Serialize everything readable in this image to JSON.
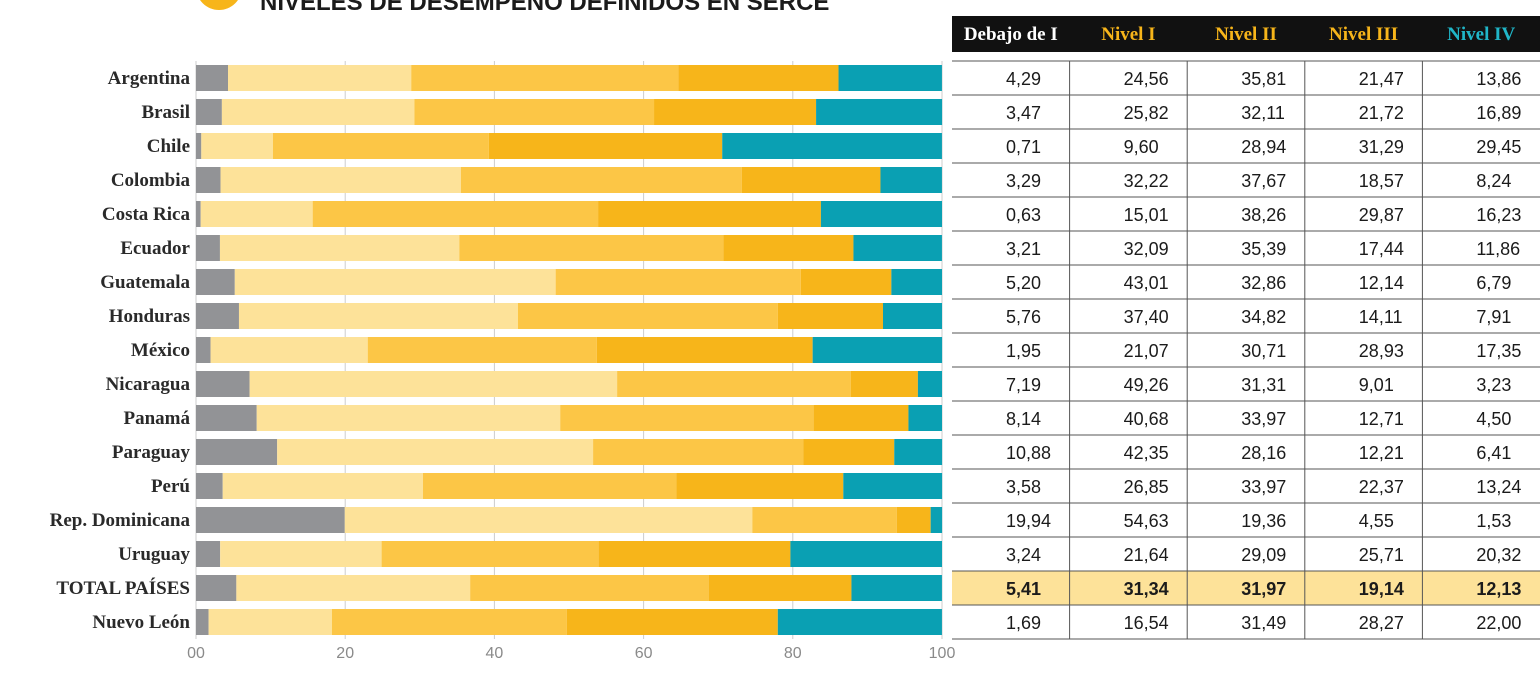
{
  "title": "NIVELES DE DESEMPEÑO DEFINIDOS EN SERCE",
  "colors": {
    "debajo": "#929396",
    "nivel1": "#fde299",
    "nivel2": "#fcc646",
    "nivel3": "#f7b51a",
    "nivel4": "#0aa0b3",
    "header_bg": "#111111",
    "header_text_white": "#ffffff",
    "header_text_gold": "#f7b51a",
    "header_text_teal": "#20b6c8",
    "total_row_bg": "#fde299",
    "grid": "#cccccc"
  },
  "chart_data": {
    "type": "bar",
    "orientation": "horizontal",
    "stacked": true,
    "title": "NIVELES DE DESEMPEÑO DEFINIDOS EN SERCE",
    "xlim": [
      0,
      100
    ],
    "xticks": [
      0,
      20,
      40,
      60,
      80,
      100
    ],
    "xtick_labels": [
      "00",
      "20",
      "40",
      "60",
      "80",
      "100"
    ],
    "categories": [
      "Argentina",
      "Brasil",
      "Chile",
      "Colombia",
      "Costa Rica",
      "Ecuador",
      "Guatemala",
      "Honduras",
      "México",
      "Nicaragua",
      "Panamá",
      "Paraguay",
      "Perú",
      "Rep. Dominicana",
      "Uruguay",
      "TOTAL PAÍSES",
      "Nuevo León"
    ],
    "highlight_category": "TOTAL PAÍSES",
    "series": [
      {
        "name": "Debajo de I",
        "color_key": "debajo",
        "values": [
          4.29,
          3.47,
          0.71,
          3.29,
          0.63,
          3.21,
          5.2,
          5.76,
          1.95,
          7.19,
          8.14,
          10.88,
          3.58,
          19.94,
          3.24,
          5.41,
          1.69
        ],
        "labels": [
          "4,29",
          "3,47",
          "0,71",
          "3,29",
          "0,63",
          "3,21",
          "5,20",
          "5,76",
          "1,95",
          "7,19",
          "8,14",
          "10,88",
          "3,58",
          "19,94",
          "3,24",
          "5,41",
          "1,69"
        ]
      },
      {
        "name": "Nivel I",
        "color_key": "nivel1",
        "values": [
          24.56,
          25.82,
          9.6,
          32.22,
          15.01,
          32.09,
          43.01,
          37.4,
          21.07,
          49.26,
          40.68,
          42.35,
          26.85,
          54.63,
          21.64,
          31.34,
          16.54
        ],
        "labels": [
          "24,56",
          "25,82",
          "9,60",
          "32,22",
          "15,01",
          "32,09",
          "43,01",
          "37,40",
          "21,07",
          "49,26",
          "40,68",
          "42,35",
          "26,85",
          "54,63",
          "21,64",
          "31,34",
          "16,54"
        ]
      },
      {
        "name": "Nivel II",
        "color_key": "nivel2",
        "values": [
          35.81,
          32.11,
          28.94,
          37.67,
          38.26,
          35.39,
          32.86,
          34.82,
          30.71,
          31.31,
          33.97,
          28.16,
          33.97,
          19.36,
          29.09,
          31.97,
          31.49
        ],
        "labels": [
          "35,81",
          "32,11",
          "28,94",
          "37,67",
          "38,26",
          "35,39",
          "32,86",
          "34,82",
          "30,71",
          "31,31",
          "33,97",
          "28,16",
          "33,97",
          "19,36",
          "29,09",
          "31,97",
          "31,49"
        ]
      },
      {
        "name": "Nivel III",
        "color_key": "nivel3",
        "values": [
          21.47,
          21.72,
          31.29,
          18.57,
          29.87,
          17.44,
          12.14,
          14.11,
          28.93,
          9.01,
          12.71,
          12.21,
          22.37,
          4.55,
          25.71,
          19.14,
          28.27
        ],
        "labels": [
          "21,47",
          "21,72",
          "31,29",
          "18,57",
          "29,87",
          "17,44",
          "12,14",
          "14,11",
          "28,93",
          "9,01",
          "12,71",
          "12,21",
          "22,37",
          "4,55",
          "25,71",
          "19,14",
          "28,27"
        ]
      },
      {
        "name": "Nivel IV",
        "color_key": "nivel4",
        "values": [
          13.86,
          16.89,
          29.45,
          8.24,
          16.23,
          11.86,
          6.79,
          7.91,
          17.35,
          3.23,
          4.5,
          6.41,
          13.24,
          1.53,
          20.32,
          12.13,
          22.0
        ],
        "labels": [
          "13,86",
          "16,89",
          "29,45",
          "8,24",
          "16,23",
          "11,86",
          "6,79",
          "7,91",
          "17,35",
          "3,23",
          "4,50",
          "6,41",
          "13,24",
          "1,53",
          "20,32",
          "12,13",
          "22,00"
        ]
      }
    ],
    "table_headers": [
      {
        "label": "Debajo de I",
        "color_key": "header_text_white"
      },
      {
        "label": "Nivel I",
        "color_key": "header_text_gold"
      },
      {
        "label": "Nivel II",
        "color_key": "header_text_gold"
      },
      {
        "label": "Nivel III",
        "color_key": "header_text_gold"
      },
      {
        "label": "Nivel IV",
        "color_key": "header_text_teal"
      }
    ]
  }
}
